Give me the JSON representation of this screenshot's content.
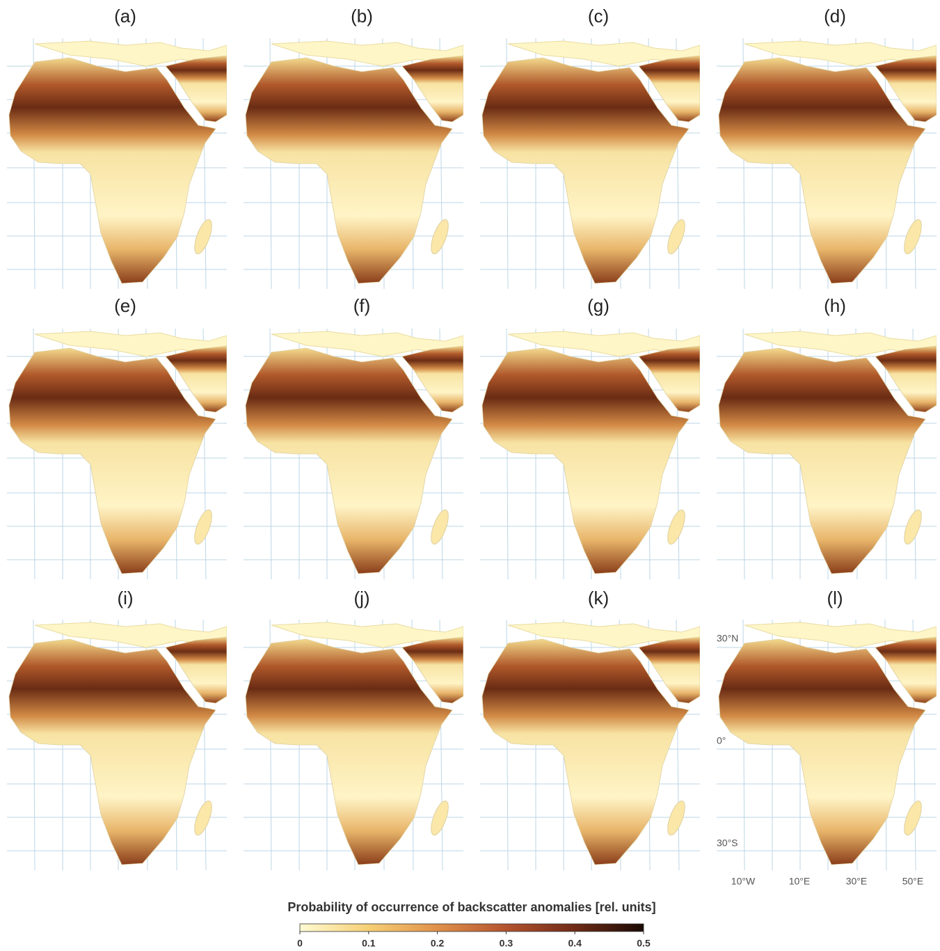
{
  "panels": [
    {
      "label": "(a)"
    },
    {
      "label": "(b)"
    },
    {
      "label": "(c)"
    },
    {
      "label": "(d)"
    },
    {
      "label": "(e)"
    },
    {
      "label": "(f)"
    },
    {
      "label": "(g)"
    },
    {
      "label": "(h)"
    },
    {
      "label": "(i)"
    },
    {
      "label": "(j)"
    },
    {
      "label": "(k)"
    },
    {
      "label": "(l)"
    }
  ],
  "map_labels": {
    "lat": [
      "30°N",
      "0°",
      "30°S"
    ],
    "lon": [
      "10°W",
      "10°E",
      "30°E",
      "50°E"
    ]
  },
  "colorbar": {
    "title": "Probability of occurrence of backscatter anomalies [rel. units]",
    "range": [
      0,
      0.5
    ],
    "ticks": [
      0,
      0.1,
      0.2,
      0.3,
      0.4,
      0.5
    ],
    "colors": [
      "#fffbd2",
      "#f6cf74",
      "#e0914a",
      "#b4532e",
      "#6f2a16",
      "#1a0a04"
    ]
  }
}
